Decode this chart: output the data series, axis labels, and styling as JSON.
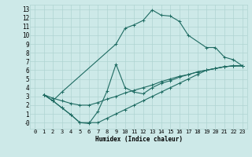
{
  "xlabel": "Humidex (Indice chaleur)",
  "bg_color": "#cde9e8",
  "grid_color": "#afd4d2",
  "line_color": "#1e6b62",
  "xlim": [
    -0.5,
    23.5
  ],
  "ylim": [
    -0.7,
    13.5
  ],
  "xticks": [
    0,
    1,
    2,
    3,
    4,
    5,
    6,
    7,
    8,
    9,
    10,
    11,
    12,
    13,
    14,
    15,
    16,
    17,
    18,
    19,
    20,
    21,
    22,
    23
  ],
  "yticks": [
    0,
    1,
    2,
    3,
    4,
    5,
    6,
    7,
    8,
    9,
    10,
    11,
    12,
    13
  ],
  "line1_x": [
    1,
    2,
    3,
    9,
    10,
    11,
    12,
    13,
    14,
    15,
    16,
    17,
    19,
    20,
    21,
    22,
    23
  ],
  "line1_y": [
    3.2,
    2.5,
    3.5,
    9.0,
    10.8,
    11.2,
    11.7,
    12.9,
    12.3,
    12.2,
    11.6,
    10.0,
    8.6,
    8.6,
    7.5,
    7.2,
    6.5
  ],
  "line2_x": [
    1,
    2,
    3,
    4,
    5,
    6,
    7,
    8,
    9,
    10,
    11,
    12,
    13,
    14,
    15,
    16,
    17,
    18,
    19,
    20,
    21,
    22,
    23
  ],
  "line2_y": [
    3.2,
    2.8,
    2.5,
    2.2,
    2.0,
    2.0,
    2.3,
    2.7,
    3.0,
    3.4,
    3.7,
    4.0,
    4.3,
    4.7,
    5.0,
    5.3,
    5.5,
    5.8,
    6.0,
    6.2,
    6.4,
    6.5,
    6.5
  ],
  "line3_x": [
    1,
    2,
    3,
    4,
    5,
    6,
    7,
    8,
    9,
    10,
    11,
    12,
    13,
    14,
    15,
    16,
    17,
    18,
    19,
    20,
    21,
    22,
    23
  ],
  "line3_y": [
    3.2,
    2.5,
    1.7,
    0.9,
    0.0,
    0.0,
    0.0,
    0.5,
    1.0,
    1.5,
    2.0,
    2.5,
    3.0,
    3.5,
    4.0,
    4.5,
    5.0,
    5.5,
    6.0,
    6.2,
    6.4,
    6.5,
    6.5
  ],
  "line4_x": [
    1,
    2,
    3,
    4,
    5,
    6,
    7,
    8,
    9,
    10,
    11,
    12,
    13,
    14,
    15,
    16,
    17,
    18,
    19,
    20,
    21,
    22,
    23
  ],
  "line4_y": [
    3.2,
    2.5,
    1.7,
    0.9,
    0.0,
    -0.1,
    1.3,
    3.6,
    6.7,
    4.0,
    3.5,
    3.3,
    4.0,
    4.5,
    4.8,
    5.2,
    5.5,
    5.8,
    6.0,
    6.2,
    6.4,
    6.5,
    6.5
  ]
}
